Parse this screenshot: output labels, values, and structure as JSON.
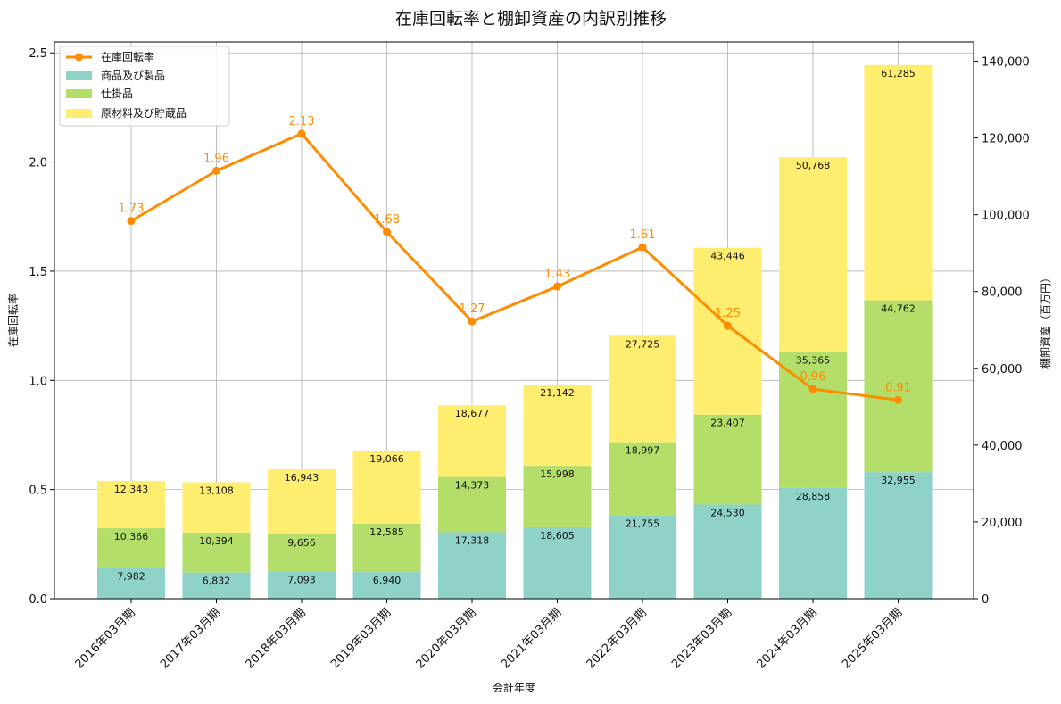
{
  "chart_data": {
    "type": "bar",
    "title": "在庫回転率と棚卸資産の内訳別推移",
    "xlabel": "会計年度",
    "ylabel_left": "在庫回転率",
    "ylabel_right": "棚卸資産（百万円）",
    "categories": [
      "2016年03月期",
      "2017年03月期",
      "2018年03月期",
      "2019年03月期",
      "2020年03月期",
      "2021年03月期",
      "2022年03月期",
      "2023年03月期",
      "2024年03月期",
      "2025年03月期"
    ],
    "left_axis": {
      "min": 0,
      "max": 2.55,
      "ticks": [
        "0.0",
        "0.5",
        "1.0",
        "1.5",
        "2.0",
        "2.5"
      ],
      "tick_values": [
        0,
        0.5,
        1,
        1.5,
        2,
        2.5
      ]
    },
    "right_axis": {
      "min": 0,
      "max": 145000,
      "ticks": [
        "0",
        "20,000",
        "40,000",
        "60,000",
        "80,000",
        "100,000",
        "120,000",
        "140,000"
      ],
      "tick_values": [
        0,
        20000,
        40000,
        60000,
        80000,
        100000,
        120000,
        140000
      ]
    },
    "grid": true,
    "legend_position": "top-left",
    "series": [
      {
        "name": "商品及び製品",
        "kind": "bar",
        "color": "#8fd3c8",
        "values": [
          7982,
          6832,
          7093,
          6940,
          17318,
          18605,
          21755,
          24530,
          28858,
          32955
        ],
        "labels": [
          "7,982",
          "6,832",
          "7,093",
          "6,940",
          "17,318",
          "18,605",
          "21,755",
          "24,530",
          "28,858",
          "32,955"
        ]
      },
      {
        "name": "仕掛品",
        "kind": "bar",
        "color": "#b3de69",
        "values": [
          10366,
          10394,
          9656,
          12585,
          14373,
          15998,
          18997,
          23407,
          35365,
          44762
        ],
        "labels": [
          "10,366",
          "10,394",
          "9,656",
          "12,585",
          "14,373",
          "15,998",
          "18,997",
          "23,407",
          "35,365",
          "44,762"
        ]
      },
      {
        "name": "原材料及び貯蔵品",
        "kind": "bar",
        "color": "#ffed6f",
        "values": [
          12343,
          13108,
          16943,
          19066,
          18677,
          21142,
          27725,
          43446,
          50768,
          61285
        ],
        "labels": [
          "12,343",
          "13,108",
          "16,943",
          "19,066",
          "18,677",
          "21,142",
          "27,725",
          "43,446",
          "50,768",
          "61,285"
        ]
      }
    ],
    "line": {
      "name": "在庫回転率",
      "color": "#ff8c00",
      "values": [
        1.73,
        1.96,
        2.13,
        1.68,
        1.27,
        1.43,
        1.61,
        1.25,
        0.96,
        0.91
      ],
      "labels": [
        "1.73",
        "1.96",
        "2.13",
        "1.68",
        "1.27",
        "1.43",
        "1.61",
        "1.25",
        "0.96",
        "0.91"
      ]
    }
  }
}
